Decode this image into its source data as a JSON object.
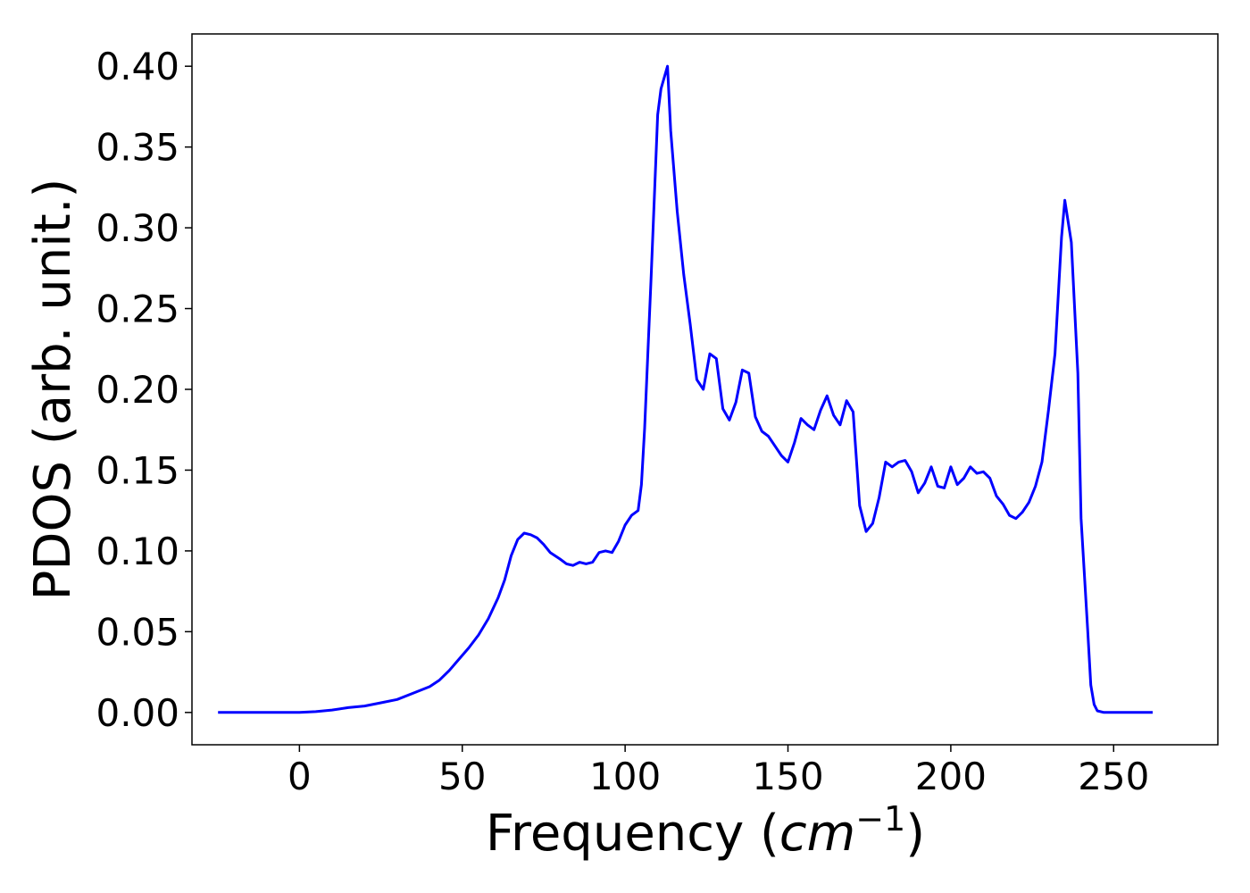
{
  "chart_data": {
    "type": "line",
    "title": "",
    "xlabel": "Frequency (",
    "xlabel_math": "cm",
    "xlabel_sup": "−1",
    "xlabel_close": ")",
    "ylabel": "PDOS (arb. unit.)",
    "xlim": [
      -33,
      282
    ],
    "ylim": [
      -0.02,
      0.42
    ],
    "xticks": [
      0,
      50,
      100,
      150,
      200,
      250
    ],
    "xtick_labels": [
      "0",
      "50",
      "100",
      "150",
      "200",
      "250"
    ],
    "yticks": [
      0.0,
      0.05,
      0.1,
      0.15,
      0.2,
      0.25,
      0.3,
      0.35,
      0.4
    ],
    "ytick_labels": [
      "0.00",
      "0.05",
      "0.10",
      "0.15",
      "0.20",
      "0.25",
      "0.30",
      "0.35",
      "0.40"
    ],
    "grid": false,
    "line_color": "#0000ff",
    "series": [
      {
        "x": [
          -25,
          -20,
          -15,
          -10,
          -5,
          0,
          5,
          10,
          15,
          20,
          25,
          30,
          35,
          40,
          43,
          46,
          49,
          52,
          55,
          58,
          61,
          63,
          65,
          67,
          69,
          71,
          73,
          75,
          77,
          80,
          82,
          84,
          86,
          88,
          90,
          92,
          94,
          96,
          98,
          100,
          102,
          104,
          105,
          106,
          108,
          110,
          111,
          113,
          114,
          116,
          118,
          120,
          122,
          124,
          126,
          128,
          130,
          132,
          134,
          136,
          138,
          140,
          142,
          144,
          146,
          148,
          150,
          152,
          154,
          156,
          158,
          160,
          162,
          164,
          166,
          168,
          170,
          172,
          174,
          176,
          178,
          180,
          182,
          184,
          186,
          188,
          190,
          192,
          194,
          196,
          198,
          200,
          202,
          204,
          206,
          208,
          210,
          212,
          214,
          216,
          218,
          220,
          222,
          224,
          226,
          228,
          230,
          232,
          234,
          235,
          237,
          239,
          240,
          242,
          243,
          244,
          245,
          247,
          250,
          255,
          262
        ],
        "y": [
          0.0,
          0.0,
          0.0,
          0.0,
          0.0,
          0.0,
          0.0005,
          0.0015,
          0.003,
          0.004,
          0.006,
          0.008,
          0.012,
          0.016,
          0.02,
          0.026,
          0.033,
          0.04,
          0.048,
          0.058,
          0.071,
          0.082,
          0.097,
          0.107,
          0.111,
          0.11,
          0.108,
          0.104,
          0.099,
          0.095,
          0.092,
          0.091,
          0.093,
          0.092,
          0.093,
          0.099,
          0.1,
          0.099,
          0.106,
          0.116,
          0.122,
          0.125,
          0.141,
          0.176,
          0.27,
          0.37,
          0.386,
          0.4,
          0.36,
          0.31,
          0.271,
          0.24,
          0.206,
          0.2,
          0.222,
          0.219,
          0.188,
          0.181,
          0.192,
          0.212,
          0.21,
          0.183,
          0.174,
          0.171,
          0.165,
          0.159,
          0.155,
          0.167,
          0.182,
          0.178,
          0.175,
          0.187,
          0.196,
          0.184,
          0.178,
          0.193,
          0.186,
          0.128,
          0.112,
          0.117,
          0.133,
          0.155,
          0.152,
          0.155,
          0.156,
          0.149,
          0.136,
          0.142,
          0.152,
          0.14,
          0.139,
          0.152,
          0.141,
          0.145,
          0.152,
          0.148,
          0.149,
          0.145,
          0.134,
          0.129,
          0.122,
          0.12,
          0.124,
          0.13,
          0.14,
          0.155,
          0.187,
          0.222,
          0.294,
          0.317,
          0.291,
          0.21,
          0.12,
          0.052,
          0.017,
          0.005,
          0.001,
          0.0,
          0.0,
          0.0,
          0.0
        ]
      }
    ]
  }
}
